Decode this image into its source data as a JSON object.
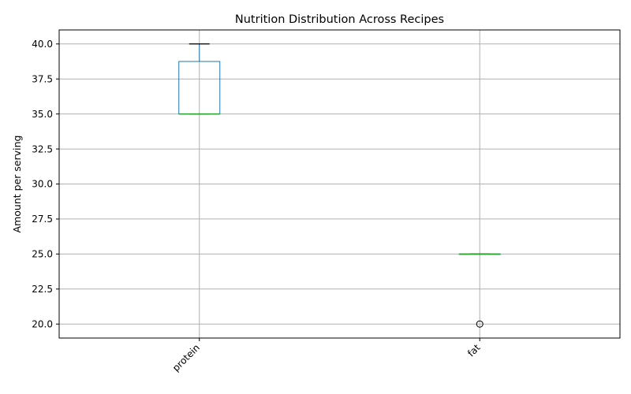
{
  "chart_data": {
    "type": "box",
    "title": "Nutrition Distribution Across Recipes",
    "xlabel": "",
    "ylabel": "Amount per serving",
    "ylim": [
      19.0,
      41.0
    ],
    "yticks": [
      "20.0",
      "22.5",
      "25.0",
      "27.5",
      "30.0",
      "32.5",
      "35.0",
      "37.5",
      "40.0"
    ],
    "grid": true,
    "categories": [
      "protein",
      "fat"
    ],
    "boxes": [
      {
        "category": "protein",
        "whisker_low": 35.0,
        "q1": 35.0,
        "median": 35.0,
        "q3": 38.75,
        "whisker_high": 40.0,
        "fliers": []
      },
      {
        "category": "fat",
        "whisker_low": 25.0,
        "q1": 25.0,
        "median": 25.0,
        "q3": 25.0,
        "whisker_high": 25.0,
        "fliers": [
          20.0
        ]
      }
    ],
    "colors": {
      "box": "#1f77b4",
      "median": "#2ca02c",
      "cap": "#000000",
      "grid": "#b0b0b0"
    }
  }
}
